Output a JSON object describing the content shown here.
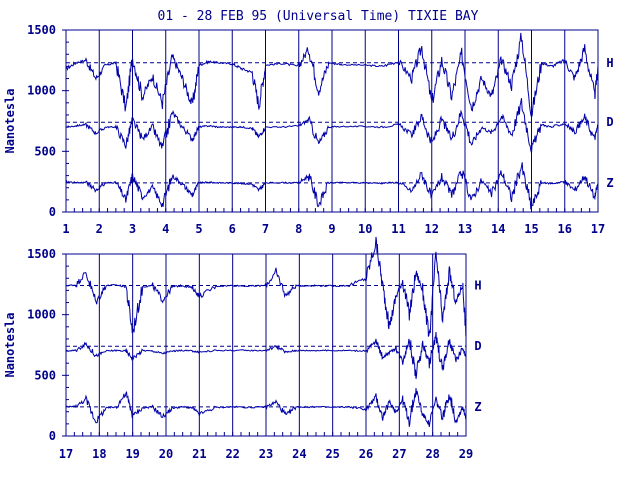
{
  "chart_data": {
    "type": "line",
    "title": "01 - 28 FEB 95 (Universal Time) TIXIE BAY",
    "colors": {
      "trace": "#0000aa",
      "axis": "#00008b",
      "background": "#ffffff"
    },
    "grid": true,
    "panels": [
      {
        "xlabel": "",
        "ylabel": "Nanotesla",
        "xlim": [
          1,
          17
        ],
        "ylim": [
          0,
          1500
        ],
        "xticks": [
          "1",
          "2",
          "3",
          "4",
          "5",
          "6",
          "7",
          "8",
          "9",
          "10",
          "11",
          "12",
          "13",
          "14",
          "15",
          "16",
          "17"
        ],
        "yticks": [
          "0",
          "500",
          "1000",
          "1500"
        ],
        "baselines": [
          {
            "component": "H",
            "value": 1230
          },
          {
            "component": "D",
            "value": 740
          },
          {
            "component": "Z",
            "value": 240
          }
        ],
        "series": [
          {
            "name": "H",
            "x": [
              1.0,
              1.3,
              1.6,
              1.9,
              2.2,
              2.5,
              2.8,
              3.0,
              3.3,
              3.6,
              3.9,
              4.2,
              4.5,
              4.8,
              5.0,
              5.3,
              5.6,
              6.0,
              6.3,
              6.6,
              6.8,
              7.0,
              7.5,
              8.0,
              8.3,
              8.6,
              8.9,
              9.3,
              10.0,
              10.5,
              11.0,
              11.4,
              11.7,
              12.0,
              12.3,
              12.6,
              12.9,
              13.2,
              13.5,
              13.8,
              14.1,
              14.4,
              14.7,
              15.0,
              15.3,
              15.6,
              16.0,
              16.3,
              16.6,
              16.9,
              17.0
            ],
            "y": [
              1180,
              1230,
              1250,
              1100,
              1210,
              1230,
              850,
              1280,
              950,
              1120,
              900,
              1280,
              1100,
              880,
              1210,
              1240,
              1230,
              1220,
              1180,
              1150,
              880,
              1210,
              1225,
              1200,
              1350,
              1000,
              1230,
              1215,
              1210,
              1200,
              1240,
              1100,
              1360,
              900,
              1250,
              950,
              1300,
              860,
              1100,
              950,
              1250,
              1050,
              1450,
              800,
              1230,
              1200,
              1250,
              1100,
              1350,
              950,
              1200
            ]
          },
          {
            "name": "D",
            "x": [
              1.0,
              1.3,
              1.6,
              1.9,
              2.2,
              2.5,
              2.8,
              3.0,
              3.3,
              3.6,
              3.9,
              4.2,
              4.5,
              4.8,
              5.0,
              5.3,
              5.6,
              6.0,
              6.3,
              6.6,
              6.8,
              7.0,
              7.5,
              8.0,
              8.3,
              8.6,
              8.9,
              9.3,
              10.0,
              10.5,
              11.0,
              11.4,
              11.7,
              12.0,
              12.3,
              12.6,
              12.9,
              13.2,
              13.5,
              13.8,
              14.1,
              14.4,
              14.7,
              15.0,
              15.3,
              15.6,
              16.0,
              16.3,
              16.6,
              16.9,
              17.0
            ],
            "y": [
              700,
              710,
              720,
              650,
              700,
              700,
              550,
              760,
              600,
              700,
              520,
              820,
              700,
              600,
              700,
              710,
              700,
              700,
              700,
              690,
              620,
              700,
              700,
              710,
              760,
              560,
              700,
              705,
              705,
              700,
              720,
              640,
              790,
              560,
              760,
              600,
              830,
              560,
              700,
              650,
              790,
              640,
              900,
              520,
              720,
              700,
              730,
              660,
              780,
              600,
              720
            ]
          },
          {
            "name": "Z",
            "x": [
              1.0,
              1.3,
              1.6,
              1.9,
              2.2,
              2.5,
              2.8,
              3.0,
              3.3,
              3.6,
              3.9,
              4.2,
              4.5,
              4.8,
              5.0,
              5.3,
              5.6,
              6.0,
              6.3,
              6.6,
              6.8,
              7.0,
              7.5,
              8.0,
              8.3,
              8.6,
              8.9,
              9.3,
              10.0,
              10.5,
              11.0,
              11.4,
              11.7,
              12.0,
              12.3,
              12.6,
              12.9,
              13.2,
              13.5,
              13.8,
              14.1,
              14.4,
              14.7,
              15.0,
              15.3,
              15.6,
              16.0,
              16.3,
              16.6,
              16.9,
              17.0
            ],
            "y": [
              250,
              240,
              245,
              180,
              240,
              245,
              100,
              300,
              120,
              200,
              60,
              300,
              230,
              140,
              240,
              245,
              240,
              240,
              235,
              230,
              180,
              240,
              242,
              240,
              300,
              60,
              240,
              242,
              240,
              238,
              245,
              170,
              320,
              120,
              290,
              140,
              330,
              100,
              260,
              150,
              330,
              120,
              380,
              40,
              240,
              235,
              250,
              180,
              300,
              120,
              240
            ]
          }
        ]
      },
      {
        "xlabel": "",
        "ylabel": "Nanotesla",
        "xlim": [
          17,
          29
        ],
        "ylim": [
          0,
          1500
        ],
        "xticks": [
          "17",
          "18",
          "19",
          "20",
          "21",
          "22",
          "23",
          "24",
          "25",
          "26",
          "27",
          "28",
          "29"
        ],
        "yticks": [
          "0",
          "500",
          "1000",
          "1500"
        ],
        "baselines": [
          {
            "component": "H",
            "value": 1240
          },
          {
            "component": "D",
            "value": 740
          },
          {
            "component": "Z",
            "value": 240
          }
        ],
        "series": [
          {
            "name": "H",
            "x": [
              17.0,
              17.3,
              17.6,
              17.9,
              18.2,
              18.5,
              18.8,
              19.0,
              19.3,
              19.6,
              19.9,
              20.2,
              20.5,
              20.8,
              21.0,
              21.5,
              22.0,
              22.5,
              23.0,
              23.3,
              23.6,
              23.9,
              24.2,
              24.5,
              25.0,
              25.5,
              26.0,
              26.3,
              26.5,
              26.7,
              26.9,
              27.1,
              27.3,
              27.5,
              27.7,
              27.9,
              28.1,
              28.3,
              28.5,
              28.7,
              28.9,
              29.0
            ],
            "y": [
              1240,
              1245,
              1350,
              1100,
              1240,
              1245,
              1230,
              850,
              1230,
              1240,
              1120,
              1230,
              1240,
              1220,
              1150,
              1235,
              1240,
              1235,
              1240,
              1350,
              1160,
              1240,
              1238,
              1240,
              1236,
              1240,
              1300,
              1600,
              1240,
              900,
              1150,
              1280,
              1000,
              1350,
              1200,
              800,
              1500,
              950,
              1350,
              1100,
              1250,
              850
            ]
          },
          {
            "name": "D",
            "x": [
              17.0,
              17.3,
              17.6,
              17.9,
              18.2,
              18.5,
              18.8,
              19.0,
              19.3,
              19.6,
              19.9,
              20.2,
              20.5,
              20.8,
              21.0,
              21.5,
              22.0,
              22.5,
              23.0,
              23.3,
              23.6,
              23.9,
              24.2,
              24.5,
              25.0,
              25.5,
              26.0,
              26.3,
              26.5,
              26.7,
              26.9,
              27.1,
              27.3,
              27.5,
              27.7,
              27.9,
              28.1,
              28.3,
              28.5,
              28.7,
              28.9,
              29.0
            ],
            "y": [
              700,
              705,
              760,
              660,
              700,
              705,
              700,
              640,
              705,
              700,
              680,
              700,
              705,
              700,
              690,
              705,
              706,
              705,
              705,
              740,
              690,
              705,
              704,
              705,
              704,
              705,
              700,
              780,
              650,
              690,
              720,
              620,
              800,
              500,
              760,
              600,
              820,
              550,
              780,
              620,
              720,
              650
            ]
          },
          {
            "name": "Z",
            "x": [
              17.0,
              17.3,
              17.6,
              17.9,
              18.2,
              18.5,
              18.8,
              19.0,
              19.3,
              19.6,
              19.9,
              20.2,
              20.5,
              20.8,
              21.0,
              21.5,
              22.0,
              22.5,
              23.0,
              23.3,
              23.6,
              23.9,
              24.2,
              24.5,
              25.0,
              25.5,
              26.0,
              26.3,
              26.5,
              26.7,
              26.9,
              27.1,
              27.3,
              27.5,
              27.7,
              27.9,
              28.1,
              28.3,
              28.5,
              28.7,
              28.9,
              29.0
            ],
            "y": [
              240,
              245,
              300,
              120,
              230,
              240,
              350,
              170,
              230,
              240,
              160,
              230,
              240,
              230,
              180,
              235,
              240,
              235,
              240,
              280,
              170,
              240,
              238,
              240,
              236,
              240,
              220,
              320,
              150,
              280,
              200,
              300,
              120,
              380,
              180,
              100,
              300,
              150,
              350,
              120,
              240,
              150
            ]
          }
        ]
      }
    ]
  }
}
